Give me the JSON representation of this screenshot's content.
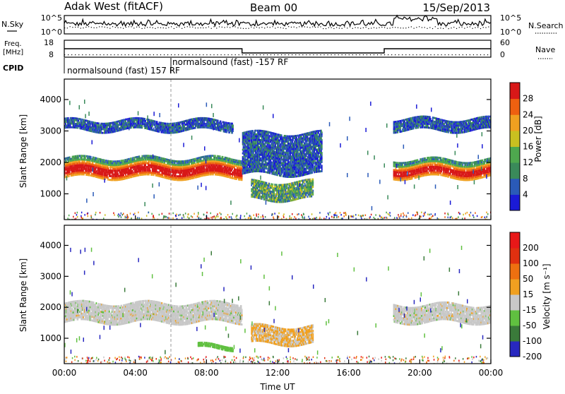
{
  "header": {
    "station": "Adak West (fitACF)",
    "beam": "Beam 00",
    "date": "15/Sep/2013"
  },
  "noise_panel": {
    "left_label": "N.Sky",
    "right_label": "N.Search",
    "left_ticks": [
      "10^5",
      "10^0"
    ],
    "right_ticks": [
      "10^5",
      "10^0"
    ]
  },
  "freq_panel": {
    "left_label_line1": "Freq.",
    "left_label_line2": "[MHz]",
    "left_ticks": [
      "18",
      "8"
    ],
    "right_label": "Nave",
    "right_ticks": [
      "60",
      "0"
    ],
    "cpid_label": "CPID",
    "cpid_entries": [
      {
        "start": "00:00",
        "text": "normalsound (fast) 157 RF"
      },
      {
        "start": "06:00",
        "text": "normalsound (fast) -157 RF"
      }
    ],
    "freq_steps": [
      {
        "from": "00:00",
        "to": "10:00",
        "mhz": 13
      },
      {
        "from": "10:00",
        "to": "18:00",
        "mhz": 10.5
      },
      {
        "from": "18:00",
        "to": "24:00",
        "mhz": 13
      }
    ],
    "nave_level": 10
  },
  "chart_data": [
    {
      "type": "heatmap",
      "title": "",
      "ylabel": "Slant Range [km]",
      "ylim": [
        180,
        4650
      ],
      "y_ticks": [
        "1000",
        "2000",
        "3000",
        "4000"
      ],
      "colorbar": {
        "label": "Power [dB]",
        "ticks": [
          "4",
          "8",
          "12",
          "16",
          "20",
          "24",
          "28"
        ],
        "colors": [
          "#1a1ad6",
          "#2a5ab8",
          "#3a8a5a",
          "#4ea84e",
          "#c9c020",
          "#f0a020",
          "#ee6010",
          "#d81818"
        ]
      },
      "echo_regions": [
        {
          "from": "00:00",
          "to": "10:00",
          "range_low": 1500,
          "range_high": 2150,
          "power_db": "20-28"
        },
        {
          "from": "00:00",
          "to": "09:30",
          "range_low": 3000,
          "range_high": 3350,
          "power_db": "4-12"
        },
        {
          "from": "10:00",
          "to": "14:30",
          "range_low": 1600,
          "range_high": 2950,
          "power_db": "4-10"
        },
        {
          "from": "10:30",
          "to": "14:00",
          "range_low": 800,
          "range_high": 1400,
          "power_db": "8-16"
        },
        {
          "from": "18:30",
          "to": "24:00",
          "range_low": 1500,
          "range_high": 2100,
          "power_db": "16-28"
        },
        {
          "from": "18:30",
          "to": "24:00",
          "range_low": 3000,
          "range_high": 3400,
          "power_db": "4-12"
        }
      ]
    },
    {
      "type": "heatmap",
      "title": "",
      "xlabel": "Time UT",
      "ylabel": "Slant Range [km]",
      "ylim": [
        180,
        4650
      ],
      "y_ticks": [
        "1000",
        "2000",
        "3000",
        "4000"
      ],
      "x_ticks": [
        "00:00",
        "04:00",
        "08:00",
        "12:00",
        "16:00",
        "20:00",
        "00:00"
      ],
      "colorbar": {
        "label": "Velocity [m s⁻¹]",
        "ticks": [
          "200",
          "100",
          "50",
          "15",
          "-15",
          "-50",
          "-100",
          "-200"
        ],
        "colors": [
          "#2828c0",
          "#3a7a3a",
          "#60c040",
          "#c8c8c8",
          "#f0a020",
          "#ee7010",
          "#e03010",
          "#e81818"
        ]
      },
      "echo_regions": [
        {
          "from": "00:00",
          "to": "10:00",
          "range_low": 1500,
          "range_high": 2150,
          "velocity": "-15 to 15"
        },
        {
          "from": "07:30",
          "to": "09:30",
          "range_low": 650,
          "range_high": 800,
          "velocity": "50 to 100"
        },
        {
          "from": "10:30",
          "to": "14:00",
          "range_low": 800,
          "range_high": 1400,
          "velocity": "-50 to -15"
        },
        {
          "from": "18:30",
          "to": "24:00",
          "range_low": 1500,
          "range_high": 2100,
          "velocity": "-15 to 15"
        }
      ]
    }
  ]
}
